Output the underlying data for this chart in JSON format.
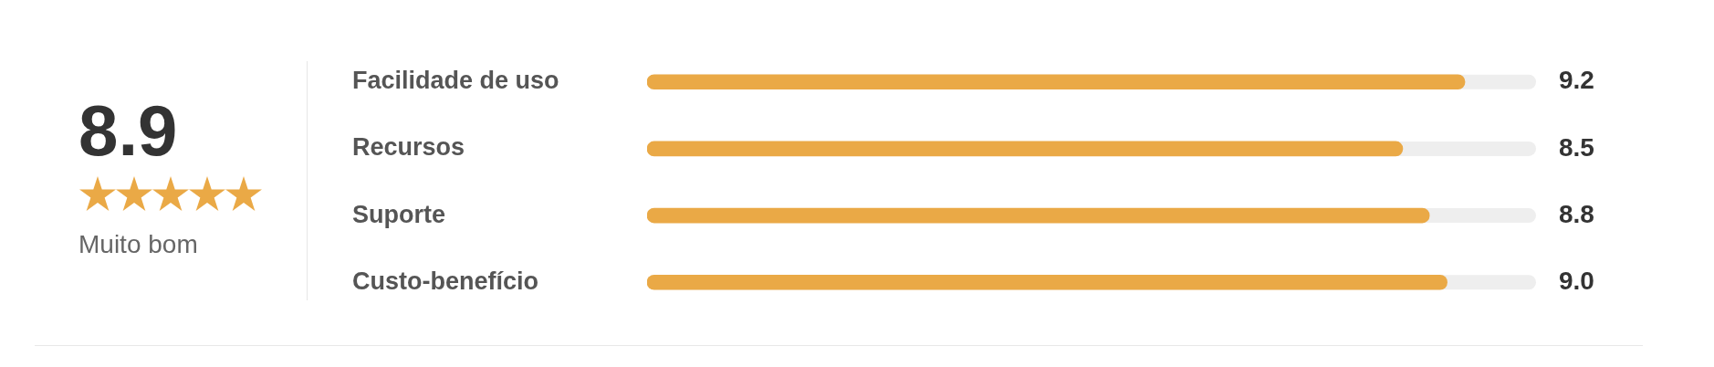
{
  "chart_data": [
    {
      "type": "other",
      "title": "8.9",
      "subtitle": "Muito bom"
    },
    {
      "type": "bar",
      "orientation": "horizontal",
      "categories": [
        "Facilidade de uso",
        "Recursos",
        "Suporte",
        "Custo-benefício"
      ],
      "values": [
        9.2,
        8.5,
        8.8,
        9.0
      ],
      "color": "#eaa946",
      "xlim": [
        0,
        10
      ],
      "value_labels": [
        "9.2",
        "8.5",
        "8.8",
        "9.0"
      ],
      "tick_labels": "y"
    }
  ]
}
